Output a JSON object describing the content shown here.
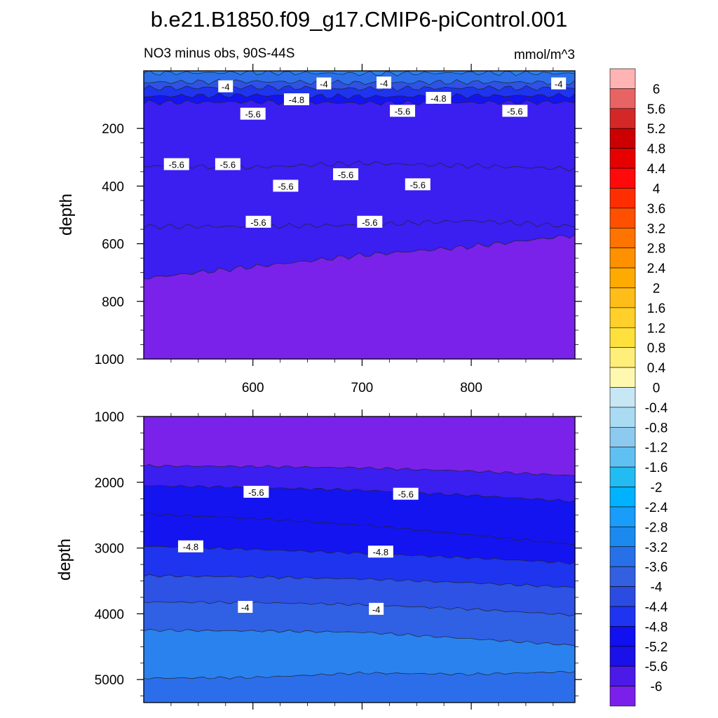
{
  "title": "b.e21.B1850.f09_g17.CMIP6-piControl.001",
  "chart_data": [
    {
      "type": "contour",
      "panel": "upper",
      "left_subtitle": "NO3 minus obs, 90S-44S",
      "right_subtitle": "mmol/m^3",
      "ylabel": "depth",
      "ylim": [
        1000,
        0
      ],
      "xlim": [
        500,
        895
      ],
      "y_ticks": [
        200,
        400,
        600,
        800,
        1000
      ],
      "x_ticks": [
        600,
        700,
        800
      ],
      "bands": [
        {
          "value": -3.2,
          "top": [
            0,
            0,
            0,
            0,
            0
          ],
          "bottom": [
            8,
            6,
            10,
            7,
            9
          ]
        },
        {
          "value": -3.6,
          "top": [
            8,
            6,
            10,
            7,
            9
          ],
          "bottom": [
            40,
            37,
            42,
            39,
            41
          ]
        },
        {
          "value": -4.4,
          "top": [
            40,
            37,
            42,
            39,
            41
          ],
          "bottom": [
            60,
            57,
            62,
            59,
            61
          ]
        },
        {
          "value": -4.8,
          "top": [
            60,
            57,
            62,
            59,
            61
          ],
          "bottom": [
            88,
            85,
            90,
            87,
            86
          ]
        },
        {
          "value": -5.2,
          "top": [
            88,
            85,
            90,
            87,
            86
          ],
          "bottom": [
            110,
            108,
            112,
            110,
            109
          ]
        },
        {
          "value": -5.6,
          "top": [
            110,
            108,
            112,
            110,
            109
          ],
          "bottom": [
            330,
            335,
            320,
            330,
            340
          ]
        },
        {
          "value": -5.6,
          "top": [
            330,
            335,
            320,
            330,
            340
          ],
          "bottom": [
            540,
            540,
            535,
            520,
            540
          ]
        },
        {
          "value": -5.6,
          "top": [
            540,
            540,
            535,
            520,
            540
          ],
          "bottom": [
            720,
            680,
            640,
            610,
            570
          ]
        },
        {
          "value": -6.0,
          "top": [
            720,
            680,
            640,
            610,
            570
          ],
          "bottom": [
            1000,
            1000,
            1000,
            1000,
            1000
          ]
        }
      ],
      "band_x": [
        500,
        600,
        700,
        800,
        895
      ],
      "contour_labels": [
        {
          "text": "-4",
          "x": 575,
          "y": 55
        },
        {
          "text": "-4",
          "x": 665,
          "y": 45
        },
        {
          "text": "-4",
          "x": 720,
          "y": 42
        },
        {
          "text": "-4",
          "x": 880,
          "y": 45
        },
        {
          "text": "-4.8",
          "x": 640,
          "y": 100
        },
        {
          "text": "-4.8",
          "x": 770,
          "y": 95
        },
        {
          "text": "-5.6",
          "x": 600,
          "y": 150
        },
        {
          "text": "-5.6",
          "x": 737,
          "y": 140
        },
        {
          "text": "-5.6",
          "x": 840,
          "y": 140
        },
        {
          "text": "-5.6",
          "x": 530,
          "y": 325
        },
        {
          "text": "-5.6",
          "x": 577,
          "y": 325
        },
        {
          "text": "-5.6",
          "x": 630,
          "y": 400
        },
        {
          "text": "-5.6",
          "x": 685,
          "y": 360
        },
        {
          "text": "-5.6",
          "x": 751,
          "y": 395
        },
        {
          "text": "-5.6",
          "x": 605,
          "y": 525
        },
        {
          "text": "-5.6",
          "x": 707,
          "y": 525
        }
      ]
    },
    {
      "type": "contour",
      "panel": "lower",
      "ylabel": "depth",
      "ylim": [
        5350,
        1000
      ],
      "xlim": [
        500,
        895
      ],
      "y_ticks": [
        1000,
        2000,
        3000,
        4000,
        5000
      ],
      "band_x": [
        500,
        600,
        700,
        800,
        895
      ],
      "bands": [
        {
          "value": -6.0,
          "top": [
            1000,
            1000,
            1000,
            1000,
            1000
          ],
          "bottom": [
            1750,
            1760,
            1780,
            1830,
            1900
          ]
        },
        {
          "value": -5.6,
          "top": [
            1750,
            1760,
            1780,
            1830,
            1900
          ],
          "bottom": [
            2050,
            2080,
            2120,
            2200,
            2290
          ]
        },
        {
          "value": -5.2,
          "top": [
            2050,
            2080,
            2120,
            2200,
            2290
          ],
          "bottom": [
            2480,
            2550,
            2650,
            2800,
            2950
          ]
        },
        {
          "value": -5.2,
          "top": [
            2480,
            2550,
            2650,
            2800,
            2950
          ],
          "bottom": [
            2970,
            3020,
            3080,
            3150,
            3230
          ]
        },
        {
          "value": -4.8,
          "top": [
            2970,
            3020,
            3080,
            3150,
            3230
          ],
          "bottom": [
            3420,
            3440,
            3470,
            3530,
            3600
          ]
        },
        {
          "value": -4.4,
          "top": [
            3420,
            3440,
            3470,
            3530,
            3600
          ],
          "bottom": [
            3820,
            3830,
            3860,
            3930,
            4020
          ]
        },
        {
          "value": -4.0,
          "top": [
            3820,
            3830,
            3860,
            3930,
            4020
          ],
          "bottom": [
            4250,
            4260,
            4280,
            4380,
            4480
          ]
        },
        {
          "value": -3.2,
          "top": [
            4250,
            4260,
            4280,
            4380,
            4480
          ],
          "bottom": [
            4980,
            4970,
            4900,
            4920,
            4880
          ]
        },
        {
          "value": -3.6,
          "top": [
            4980,
            4970,
            4900,
            4920,
            4880
          ],
          "bottom": [
            5350,
            5350,
            5350,
            5350,
            5350
          ]
        }
      ],
      "contour_labels": [
        {
          "text": "-5.6",
          "x": 603,
          "y": 2150
        },
        {
          "text": "-5.6",
          "x": 740,
          "y": 2180
        },
        {
          "text": "-4.8",
          "x": 543,
          "y": 2980
        },
        {
          "text": "-4.8",
          "x": 717,
          "y": 3060
        },
        {
          "text": "-4",
          "x": 593,
          "y": 3900
        },
        {
          "text": "-4",
          "x": 713,
          "y": 3930
        }
      ]
    }
  ],
  "colorbar": {
    "labels": [
      "6",
      "5.6",
      "5.2",
      "4.8",
      "4.4",
      "4",
      "3.6",
      "3.2",
      "2.8",
      "2.4",
      "2",
      "1.6",
      "1.2",
      "0.8",
      "0.4",
      "0",
      "-0.4",
      "-0.8",
      "-1.2",
      "-1.6",
      "-2",
      "-2.4",
      "-2.8",
      "-3.2",
      "-3.6",
      "-4",
      "-4.4",
      "-4.8",
      "-5.2",
      "-5.6",
      "-6"
    ],
    "colors": [
      "#ffb3b3",
      "#e86464",
      "#d42828",
      "#cc0000",
      "#e60000",
      "#ff0a0a",
      "#ff2e00",
      "#ff5000",
      "#ff7300",
      "#ff9100",
      "#ffaa00",
      "#ffbd19",
      "#ffd02a",
      "#ffe03c",
      "#ffef7a",
      "#fff9b0",
      "#c7e7f5",
      "#a9dbf2",
      "#8ccaf0",
      "#60c0f2",
      "#22bbf2",
      "#00b2ff",
      "#199cfa",
      "#1c89ee",
      "#2870e8",
      "#3360e0",
      "#2b4ce0",
      "#1e34f0",
      "#1010f0",
      "#1a10e8",
      "#4b1ae8",
      "#7a20ea"
    ]
  },
  "band_colors": {
    "-3.2": "#2a82ee",
    "-3.6": "#2c6eea",
    "-4.0": "#3060e4",
    "-4.4": "#2e52e4",
    "-4.8": "#1e34ee",
    "-5.2": "#1414f0",
    "-5.6": "#3b1ef0",
    "-6.0": "#7a22ea"
  }
}
